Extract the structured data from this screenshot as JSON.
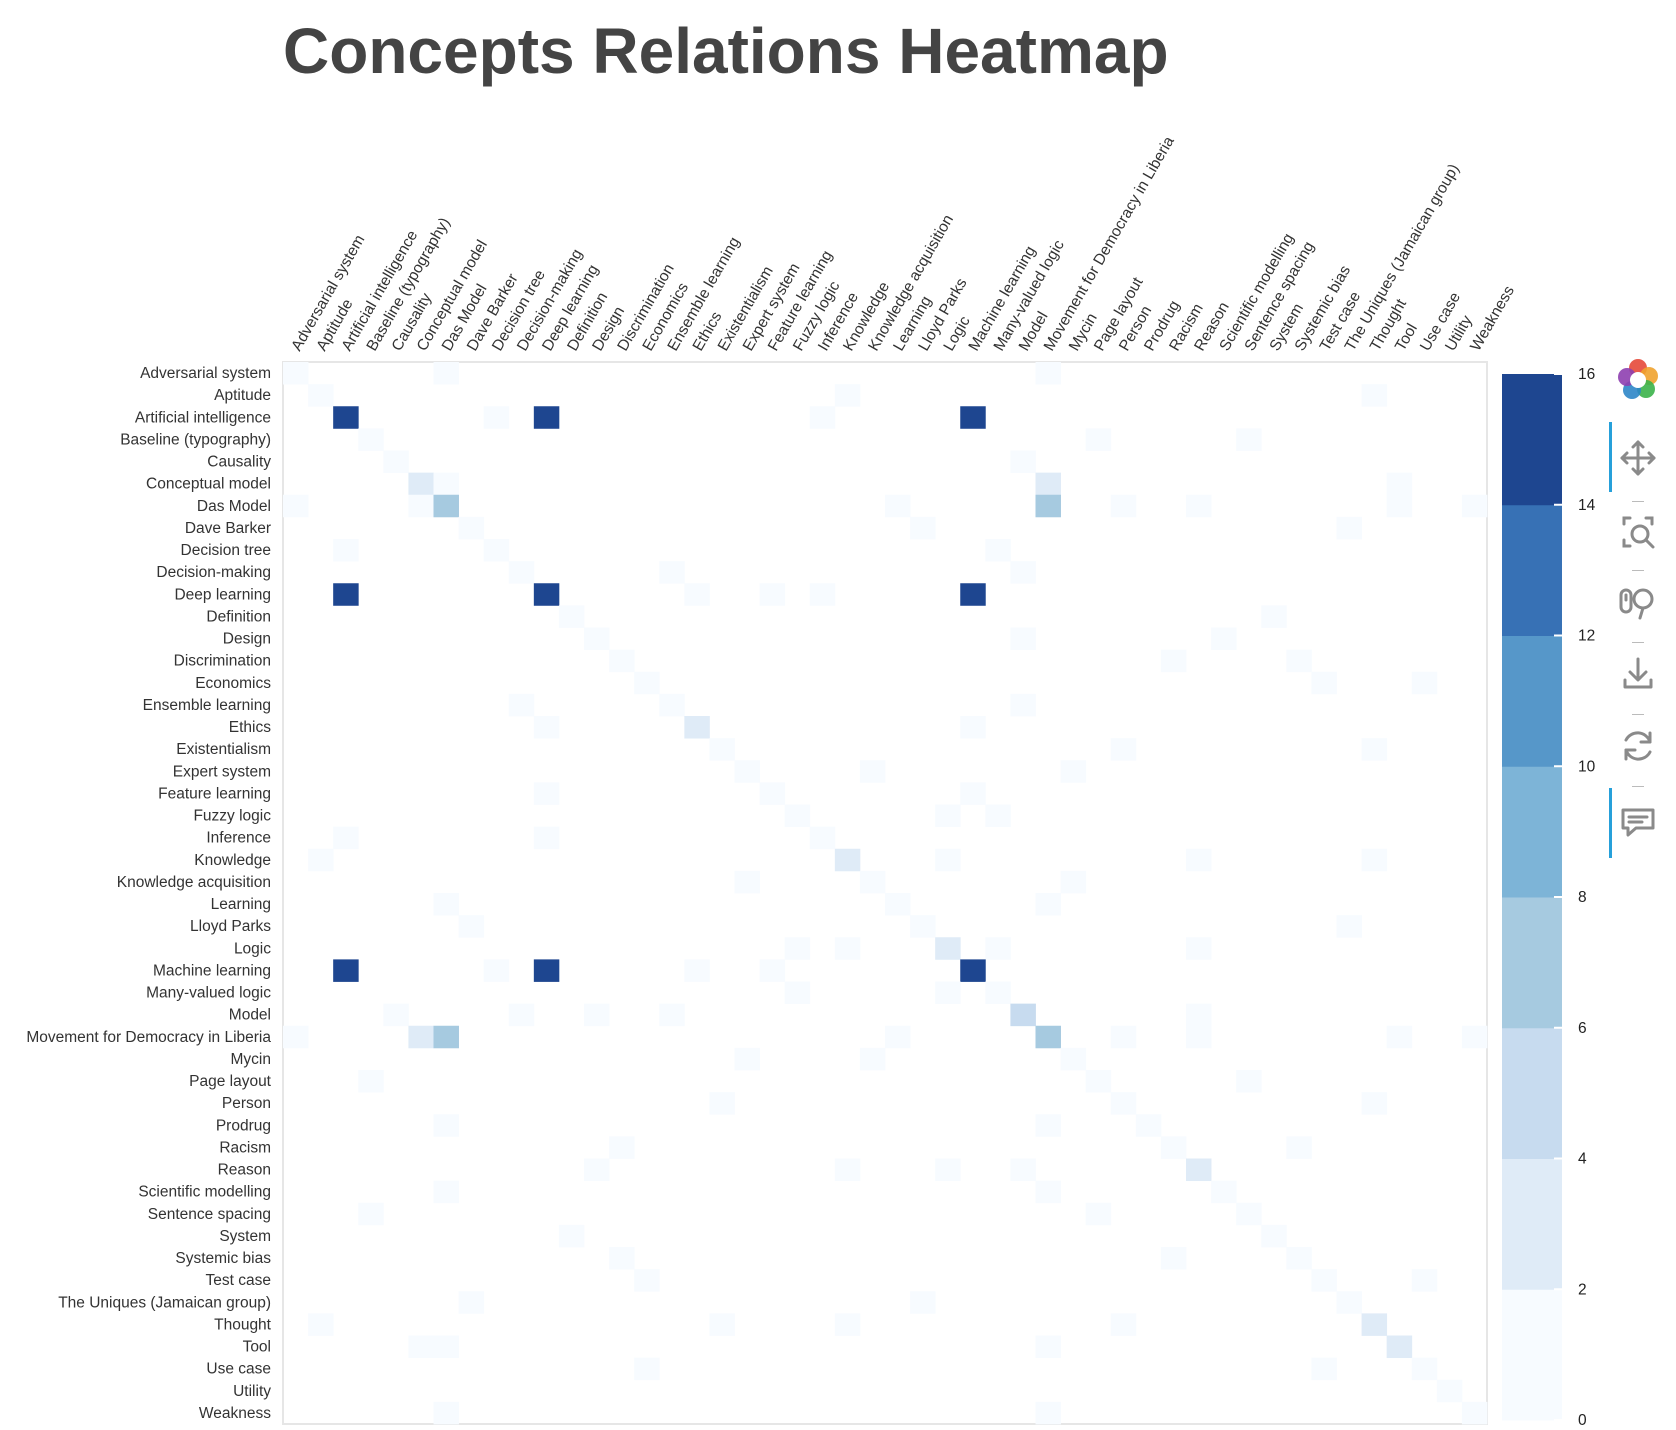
{
  "chart_data": {
    "type": "heatmap",
    "title": "Concepts Relations Heatmap",
    "x_labels": [
      "Adversarial system",
      "Aptitude",
      "Artificial intelligence",
      "Baseline (typography)",
      "Causality",
      "Conceptual model",
      "Das Model",
      "Dave Barker",
      "Decision tree",
      "Decision-making",
      "Deep learning",
      "Definition",
      "Design",
      "Discrimination",
      "Economics",
      "Ensemble learning",
      "Ethics",
      "Existentialism",
      "Expert system",
      "Feature learning",
      "Fuzzy logic",
      "Inference",
      "Knowledge",
      "Knowledge acquisition",
      "Learning",
      "Lloyd Parks",
      "Logic",
      "Machine learning",
      "Many-valued logic",
      "Model",
      "Movement for Democracy in Liberia",
      "Mycin",
      "Page layout",
      "Person",
      "Prodrug",
      "Racism",
      "Reason",
      "Scientific modelling",
      "Sentence spacing",
      "System",
      "Systemic bias",
      "Test case",
      "The Uniques (Jamaican group)",
      "Thought",
      "Tool",
      "Use case",
      "Utility",
      "Weakness"
    ],
    "y_labels": [
      "Adversarial system",
      "Aptitude",
      "Artificial intelligence",
      "Baseline (typography)",
      "Causality",
      "Conceptual model",
      "Das Model",
      "Dave Barker",
      "Decision tree",
      "Decision-making",
      "Deep learning",
      "Definition",
      "Design",
      "Discrimination",
      "Economics",
      "Ensemble learning",
      "Ethics",
      "Existentialism",
      "Expert system",
      "Feature learning",
      "Fuzzy logic",
      "Inference",
      "Knowledge",
      "Knowledge acquisition",
      "Learning",
      "Lloyd Parks",
      "Logic",
      "Machine learning",
      "Many-valued logic",
      "Model",
      "Movement for Democracy in Liberia",
      "Mycin",
      "Page layout",
      "Person",
      "Prodrug",
      "Racism",
      "Reason",
      "Scientific modelling",
      "Sentence spacing",
      "System",
      "Systemic bias",
      "Test case",
      "The Uniques (Jamaican group)",
      "Thought",
      "Tool",
      "Use case",
      "Utility",
      "Weakness"
    ],
    "cells": [
      [
        0,
        0,
        1
      ],
      [
        0,
        6,
        1
      ],
      [
        0,
        30,
        1
      ],
      [
        1,
        1,
        1
      ],
      [
        1,
        22,
        1
      ],
      [
        1,
        43,
        1
      ],
      [
        2,
        2,
        16
      ],
      [
        2,
        8,
        1
      ],
      [
        2,
        10,
        16
      ],
      [
        2,
        21,
        1
      ],
      [
        2,
        27,
        16
      ],
      [
        3,
        3,
        1
      ],
      [
        3,
        32,
        1
      ],
      [
        3,
        38,
        1
      ],
      [
        4,
        4,
        1
      ],
      [
        4,
        29,
        1
      ],
      [
        5,
        5,
        3
      ],
      [
        5,
        6,
        1
      ],
      [
        5,
        30,
        3
      ],
      [
        5,
        44,
        1
      ],
      [
        6,
        0,
        1
      ],
      [
        6,
        5,
        1
      ],
      [
        6,
        6,
        7
      ],
      [
        6,
        24,
        1
      ],
      [
        6,
        30,
        7
      ],
      [
        6,
        33,
        1
      ],
      [
        6,
        36,
        1
      ],
      [
        6,
        44,
        1
      ],
      [
        6,
        47,
        1
      ],
      [
        7,
        7,
        1
      ],
      [
        7,
        25,
        1
      ],
      [
        7,
        42,
        1
      ],
      [
        8,
        2,
        1
      ],
      [
        8,
        8,
        1
      ],
      [
        8,
        28,
        1
      ],
      [
        9,
        9,
        1
      ],
      [
        9,
        15,
        1
      ],
      [
        9,
        29,
        1
      ],
      [
        10,
        2,
        16
      ],
      [
        10,
        10,
        16
      ],
      [
        10,
        16,
        1
      ],
      [
        10,
        19,
        1
      ],
      [
        10,
        21,
        1
      ],
      [
        10,
        27,
        16
      ],
      [
        11,
        11,
        1
      ],
      [
        11,
        39,
        1
      ],
      [
        12,
        12,
        1
      ],
      [
        12,
        29,
        1
      ],
      [
        12,
        37,
        1
      ],
      [
        13,
        13,
        1
      ],
      [
        13,
        35,
        1
      ],
      [
        13,
        40,
        1
      ],
      [
        14,
        14,
        1
      ],
      [
        14,
        41,
        1
      ],
      [
        14,
        45,
        1
      ],
      [
        15,
        9,
        1
      ],
      [
        15,
        15,
        1
      ],
      [
        15,
        29,
        1
      ],
      [
        16,
        10,
        1
      ],
      [
        16,
        16,
        3
      ],
      [
        16,
        27,
        1
      ],
      [
        17,
        17,
        1
      ],
      [
        17,
        33,
        1
      ],
      [
        17,
        43,
        1
      ],
      [
        18,
        18,
        1
      ],
      [
        18,
        23,
        1
      ],
      [
        18,
        31,
        1
      ],
      [
        19,
        10,
        1
      ],
      [
        19,
        19,
        1
      ],
      [
        19,
        27,
        1
      ],
      [
        20,
        20,
        1
      ],
      [
        20,
        26,
        1
      ],
      [
        20,
        28,
        1
      ],
      [
        21,
        2,
        1
      ],
      [
        21,
        10,
        1
      ],
      [
        21,
        21,
        1
      ],
      [
        22,
        1,
        1
      ],
      [
        22,
        22,
        3
      ],
      [
        22,
        26,
        1
      ],
      [
        22,
        36,
        1
      ],
      [
        22,
        43,
        1
      ],
      [
        23,
        18,
        1
      ],
      [
        23,
        23,
        1
      ],
      [
        23,
        31,
        1
      ],
      [
        24,
        6,
        1
      ],
      [
        24,
        24,
        1
      ],
      [
        24,
        30,
        1
      ],
      [
        25,
        7,
        1
      ],
      [
        25,
        25,
        1
      ],
      [
        25,
        42,
        1
      ],
      [
        26,
        20,
        1
      ],
      [
        26,
        22,
        1
      ],
      [
        26,
        26,
        3
      ],
      [
        26,
        28,
        1
      ],
      [
        26,
        36,
        1
      ],
      [
        27,
        2,
        16
      ],
      [
        27,
        8,
        1
      ],
      [
        27,
        10,
        16
      ],
      [
        27,
        16,
        1
      ],
      [
        27,
        19,
        1
      ],
      [
        27,
        27,
        16
      ],
      [
        28,
        20,
        1
      ],
      [
        28,
        26,
        1
      ],
      [
        28,
        28,
        1
      ],
      [
        29,
        4,
        1
      ],
      [
        29,
        9,
        1
      ],
      [
        29,
        12,
        1
      ],
      [
        29,
        15,
        1
      ],
      [
        29,
        29,
        4
      ],
      [
        29,
        36,
        1
      ],
      [
        30,
        0,
        1
      ],
      [
        30,
        5,
        3
      ],
      [
        30,
        6,
        7
      ],
      [
        30,
        24,
        1
      ],
      [
        30,
        30,
        7
      ],
      [
        30,
        33,
        1
      ],
      [
        30,
        36,
        1
      ],
      [
        30,
        44,
        1
      ],
      [
        30,
        47,
        1
      ],
      [
        31,
        18,
        1
      ],
      [
        31,
        23,
        1
      ],
      [
        31,
        31,
        1
      ],
      [
        32,
        3,
        1
      ],
      [
        32,
        32,
        1
      ],
      [
        32,
        38,
        1
      ],
      [
        33,
        17,
        1
      ],
      [
        33,
        33,
        1
      ],
      [
        33,
        43,
        1
      ],
      [
        34,
        6,
        1
      ],
      [
        34,
        30,
        1
      ],
      [
        34,
        34,
        1
      ],
      [
        35,
        13,
        1
      ],
      [
        35,
        35,
        1
      ],
      [
        35,
        40,
        1
      ],
      [
        36,
        12,
        1
      ],
      [
        36,
        22,
        1
      ],
      [
        36,
        26,
        1
      ],
      [
        36,
        29,
        1
      ],
      [
        36,
        36,
        3
      ],
      [
        37,
        6,
        1
      ],
      [
        37,
        30,
        1
      ],
      [
        37,
        37,
        1
      ],
      [
        38,
        3,
        1
      ],
      [
        38,
        32,
        1
      ],
      [
        38,
        38,
        1
      ],
      [
        39,
        11,
        1
      ],
      [
        39,
        39,
        1
      ],
      [
        40,
        13,
        1
      ],
      [
        40,
        35,
        1
      ],
      [
        40,
        40,
        1
      ],
      [
        41,
        14,
        1
      ],
      [
        41,
        41,
        1
      ],
      [
        41,
        45,
        1
      ],
      [
        42,
        7,
        1
      ],
      [
        42,
        25,
        1
      ],
      [
        42,
        42,
        1
      ],
      [
        43,
        1,
        1
      ],
      [
        43,
        17,
        1
      ],
      [
        43,
        22,
        1
      ],
      [
        43,
        33,
        1
      ],
      [
        43,
        43,
        3
      ],
      [
        44,
        5,
        1
      ],
      [
        44,
        6,
        1
      ],
      [
        44,
        30,
        1
      ],
      [
        44,
        44,
        3
      ],
      [
        45,
        14,
        1
      ],
      [
        45,
        41,
        1
      ],
      [
        45,
        45,
        1
      ],
      [
        46,
        46,
        1
      ],
      [
        47,
        6,
        1
      ],
      [
        47,
        30,
        1
      ],
      [
        47,
        47,
        1
      ]
    ],
    "color_scale": {
      "min": 0,
      "max": 16,
      "ticks": [
        "0",
        "2",
        "4",
        "6",
        "8",
        "10",
        "12",
        "14",
        "16"
      ],
      "colors": [
        "#f7fbff",
        "#dfebf7",
        "#c7dbef",
        "#a6cae0",
        "#7db4d7",
        "#5697c9",
        "#3771b5",
        "#1e4690"
      ]
    },
    "legend_placement": "right",
    "grid": false
  },
  "toolbar": {
    "items": [
      {
        "name": "logo-icon",
        "interactable": false
      },
      {
        "name": "pan-icon",
        "interactable": true,
        "active": true
      },
      {
        "name": "box-zoom-icon",
        "interactable": true
      },
      {
        "name": "wheel-zoom-icon",
        "interactable": true
      },
      {
        "name": "save-icon",
        "interactable": true
      },
      {
        "name": "reset-icon",
        "interactable": true
      },
      {
        "name": "hover-icon",
        "interactable": true,
        "active": true
      }
    ]
  }
}
